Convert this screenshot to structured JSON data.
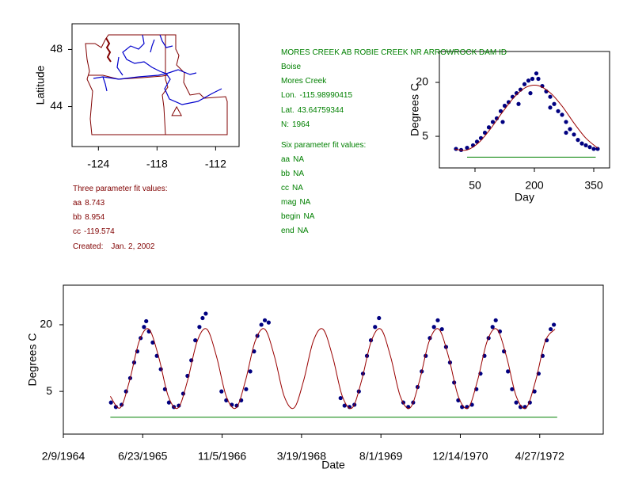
{
  "chart_data": [
    {
      "type": "map",
      "ylabel": "Latitude",
      "xlim": [
        -126.7,
        -109.6
      ],
      "ylim": [
        41.2,
        49.8
      ],
      "xticks": [
        -124,
        -118,
        -112
      ],
      "yticks": [
        44,
        48
      ],
      "color": "#800000"
    },
    {
      "type": "scatter",
      "xlabel": "Day",
      "ylabel": "Degrees C",
      "xlim": [
        -40,
        390
      ],
      "ylim": [
        -3.8,
        28.6
      ],
      "xticks": [
        50,
        200,
        350
      ],
      "yticks": [
        5,
        20
      ],
      "series": [
        {
          "style": "points",
          "color": "#000080",
          "x": [
            2,
            15,
            30,
            45,
            55,
            65,
            75,
            85,
            95,
            105,
            115,
            120,
            125,
            135,
            145,
            155,
            160,
            165,
            175,
            185,
            190,
            195,
            205,
            210,
            220,
            230,
            240,
            240,
            250,
            260,
            270,
            280,
            280,
            290,
            300,
            310,
            320,
            330,
            340,
            350,
            360
          ],
          "values": [
            1.5,
            1.2,
            1.8,
            2.5,
            3.5,
            4.5,
            6,
            7.5,
            9,
            10,
            12,
            9,
            13.5,
            14.5,
            16,
            17,
            14,
            18,
            19.5,
            20.5,
            17,
            21,
            22.5,
            21,
            19,
            17.5,
            16,
            13,
            14,
            12,
            11,
            9,
            6,
            7,
            5.5,
            4,
            3,
            2.5,
            2,
            1.5,
            1.5
          ]
        },
        {
          "style": "line",
          "color": "#990000",
          "x": [
            0,
            30,
            60,
            90,
            120,
            150,
            180,
            210,
            240,
            270,
            300,
            330,
            360
          ],
          "values": [
            1.4,
            1.2,
            3.3,
            7.2,
            11.8,
            16.0,
            18.7,
            19.1,
            17.1,
            13.4,
            8.7,
            4.5,
            1.7
          ]
        },
        {
          "style": "line",
          "color": "#008000",
          "x": [
            30,
            355
          ],
          "values": [
            -0.8,
            -0.8
          ]
        }
      ]
    },
    {
      "type": "timeseries",
      "xlabel": "Date",
      "ylabel": "Degrees C",
      "xlim": [
        "1964-02-09",
        "1973-06-01"
      ],
      "ylim": [
        -4.6,
        28.9
      ],
      "xticks": [
        {
          "value": "1964-02-09",
          "label": "2/9/1964"
        },
        {
          "value": "1965-06-23",
          "label": "6/23/1965"
        },
        {
          "value": "1966-11-05",
          "label": "11/5/1966"
        },
        {
          "value": "1968-03-19",
          "label": "3/19/1968"
        },
        {
          "value": "1969-08-01",
          "label": "8/1/1969"
        },
        {
          "value": "1970-12-14",
          "label": "12/14/1970"
        },
        {
          "value": "1972-04-27",
          "label": "4/27/1972"
        }
      ],
      "yticks": [
        5,
        20
      ],
      "series": [
        {
          "style": "points",
          "color": "#000080",
          "x": [
            "1964-12-05",
            "1965-01-05",
            "1965-02-10",
            "1965-03-10",
            "1965-04-05",
            "1965-04-30",
            "1965-05-20",
            "1965-06-10",
            "1965-07-01",
            "1965-07-15",
            "1965-08-01",
            "1965-08-25",
            "1965-09-20",
            "1965-10-15",
            "1965-11-10",
            "1965-12-05",
            "1966-01-05",
            "1966-02-05",
            "1966-03-05",
            "1966-04-01",
            "1966-04-25",
            "1966-05-20",
            "1966-06-15",
            "1966-07-05",
            "1966-07-25",
            "1966-11-01",
            "1966-12-01",
            "1967-01-05",
            "1967-02-05",
            "1967-03-05",
            "1967-04-05",
            "1967-05-01",
            "1967-05-25",
            "1967-06-15",
            "1967-07-10",
            "1967-08-01",
            "1967-08-25",
            "1968-11-20",
            "1968-12-15",
            "1969-01-15",
            "1969-02-15",
            "1969-03-15",
            "1969-04-10",
            "1969-05-05",
            "1969-05-30",
            "1969-06-25",
            "1969-07-20",
            "1969-12-20",
            "1970-01-20",
            "1970-02-20",
            "1970-03-20",
            "1970-04-15",
            "1970-05-10",
            "1970-06-05",
            "1970-07-01",
            "1970-07-25",
            "1970-08-20",
            "1970-09-15",
            "1970-10-10",
            "1970-11-05",
            "1970-12-01",
            "1970-12-25",
            "1971-01-25",
            "1971-02-25",
            "1971-03-25",
            "1971-04-20",
            "1971-05-15",
            "1971-06-10",
            "1971-07-05",
            "1971-07-25",
            "1971-08-20",
            "1971-09-15",
            "1971-10-10",
            "1971-11-05",
            "1971-12-01",
            "1971-12-28",
            "1972-01-25",
            "1972-02-25",
            "1972-03-25",
            "1972-04-20",
            "1972-05-15",
            "1972-06-10",
            "1972-07-05",
            "1972-07-25"
          ],
          "values": [
            2.5,
            1.5,
            2.0,
            5.0,
            8.0,
            11.5,
            14.0,
            17.0,
            19.5,
            20.8,
            18.5,
            16.0,
            13.0,
            10.0,
            5.5,
            2.5,
            1.5,
            1.8,
            4.5,
            8.5,
            12.0,
            16.5,
            19.5,
            21.5,
            22.5,
            5.0,
            3.0,
            2.0,
            1.8,
            3.0,
            5.5,
            9.5,
            14.0,
            17.5,
            20.0,
            21.0,
            20.5,
            3.5,
            1.8,
            1.5,
            2.0,
            5.0,
            9.0,
            13.0,
            16.5,
            19.5,
            21.5,
            2.5,
            1.5,
            2.5,
            6.0,
            9.5,
            13.0,
            17.0,
            19.5,
            21.0,
            19.0,
            15.0,
            11.5,
            7.0,
            3.0,
            1.5,
            1.5,
            2.0,
            5.5,
            9.0,
            13.0,
            17.0,
            19.5,
            21.0,
            18.5,
            14.0,
            9.5,
            5.5,
            2.5,
            1.5,
            1.5,
            2.5,
            5.0,
            9.0,
            13.0,
            16.5,
            19.0,
            20.0
          ]
        },
        {
          "style": "line",
          "color": "#990000",
          "x": [
            "1964-12-01",
            "1965-02-01",
            "1965-04-01",
            "1965-06-01",
            "1965-08-01",
            "1965-10-01",
            "1965-12-01",
            "1966-02-01",
            "1966-04-01",
            "1966-06-01",
            "1966-08-01",
            "1966-10-01",
            "1966-12-01",
            "1967-02-01",
            "1967-04-01",
            "1967-06-01",
            "1967-08-01",
            "1967-10-01",
            "1967-12-01",
            "1968-02-01",
            "1968-04-01",
            "1968-06-01",
            "1968-08-01",
            "1968-10-01",
            "1968-12-01",
            "1969-02-01",
            "1969-04-01",
            "1969-06-01",
            "1969-08-01",
            "1969-10-01",
            "1969-12-01",
            "1970-02-01",
            "1970-04-01",
            "1970-06-01",
            "1970-08-01",
            "1970-10-01",
            "1970-12-01",
            "1971-02-01",
            "1971-04-01",
            "1971-06-01",
            "1971-08-01",
            "1971-10-01",
            "1971-12-01",
            "1972-02-01",
            "1972-04-01",
            "1972-06-01",
            "1972-08-01"
          ],
          "values": [
            3.9,
            1.3,
            7.4,
            16.3,
            19.0,
            12.8,
            3.9,
            1.3,
            7.4,
            16.3,
            19.0,
            12.8,
            3.9,
            1.3,
            7.4,
            16.3,
            19.0,
            12.8,
            3.9,
            1.3,
            7.4,
            16.3,
            19.0,
            12.8,
            3.9,
            1.3,
            7.4,
            16.3,
            19.0,
            12.8,
            3.9,
            1.3,
            7.4,
            16.3,
            19.0,
            12.8,
            3.9,
            1.3,
            7.4,
            16.3,
            19.0,
            12.8,
            3.9,
            1.3,
            7.4,
            16.3,
            19.0
          ]
        },
        {
          "style": "line",
          "color": "#008000",
          "x": [
            "1964-12-01",
            "1972-08-15"
          ],
          "values": [
            -0.8,
            -0.8
          ]
        }
      ]
    }
  ],
  "station": {
    "title": "MORES CREEK AB ROBIE CREEK NR ARROWROCK DAM ID",
    "region": "Boise",
    "stream": "Mores Creek",
    "lon": {
      "label": "Lon.",
      "value": -115.98990415
    },
    "lat": {
      "label": "Lat.",
      "value": 43.64759344
    },
    "n": {
      "label": "N:",
      "value": 1964
    },
    "six_parameter_fit": {
      "heading": "Six parameter fit values:",
      "params": [
        {
          "name": "aa",
          "value": "NA"
        },
        {
          "name": "bb",
          "value": "NA"
        },
        {
          "name": "cc",
          "value": "NA"
        },
        {
          "name": "mag",
          "value": "NA"
        },
        {
          "name": "begin",
          "value": "NA"
        },
        {
          "name": "end",
          "value": "NA"
        }
      ]
    }
  },
  "three_parameter_fit": {
    "heading": "Three parameter fit values:",
    "params": [
      {
        "name": "aa",
        "value": 8.743
      },
      {
        "name": "bb",
        "value": 8.954
      },
      {
        "name": "cc",
        "value": -119.574
      }
    ],
    "created": {
      "label": "Created:",
      "value": "Jan. 2, 2002"
    }
  }
}
